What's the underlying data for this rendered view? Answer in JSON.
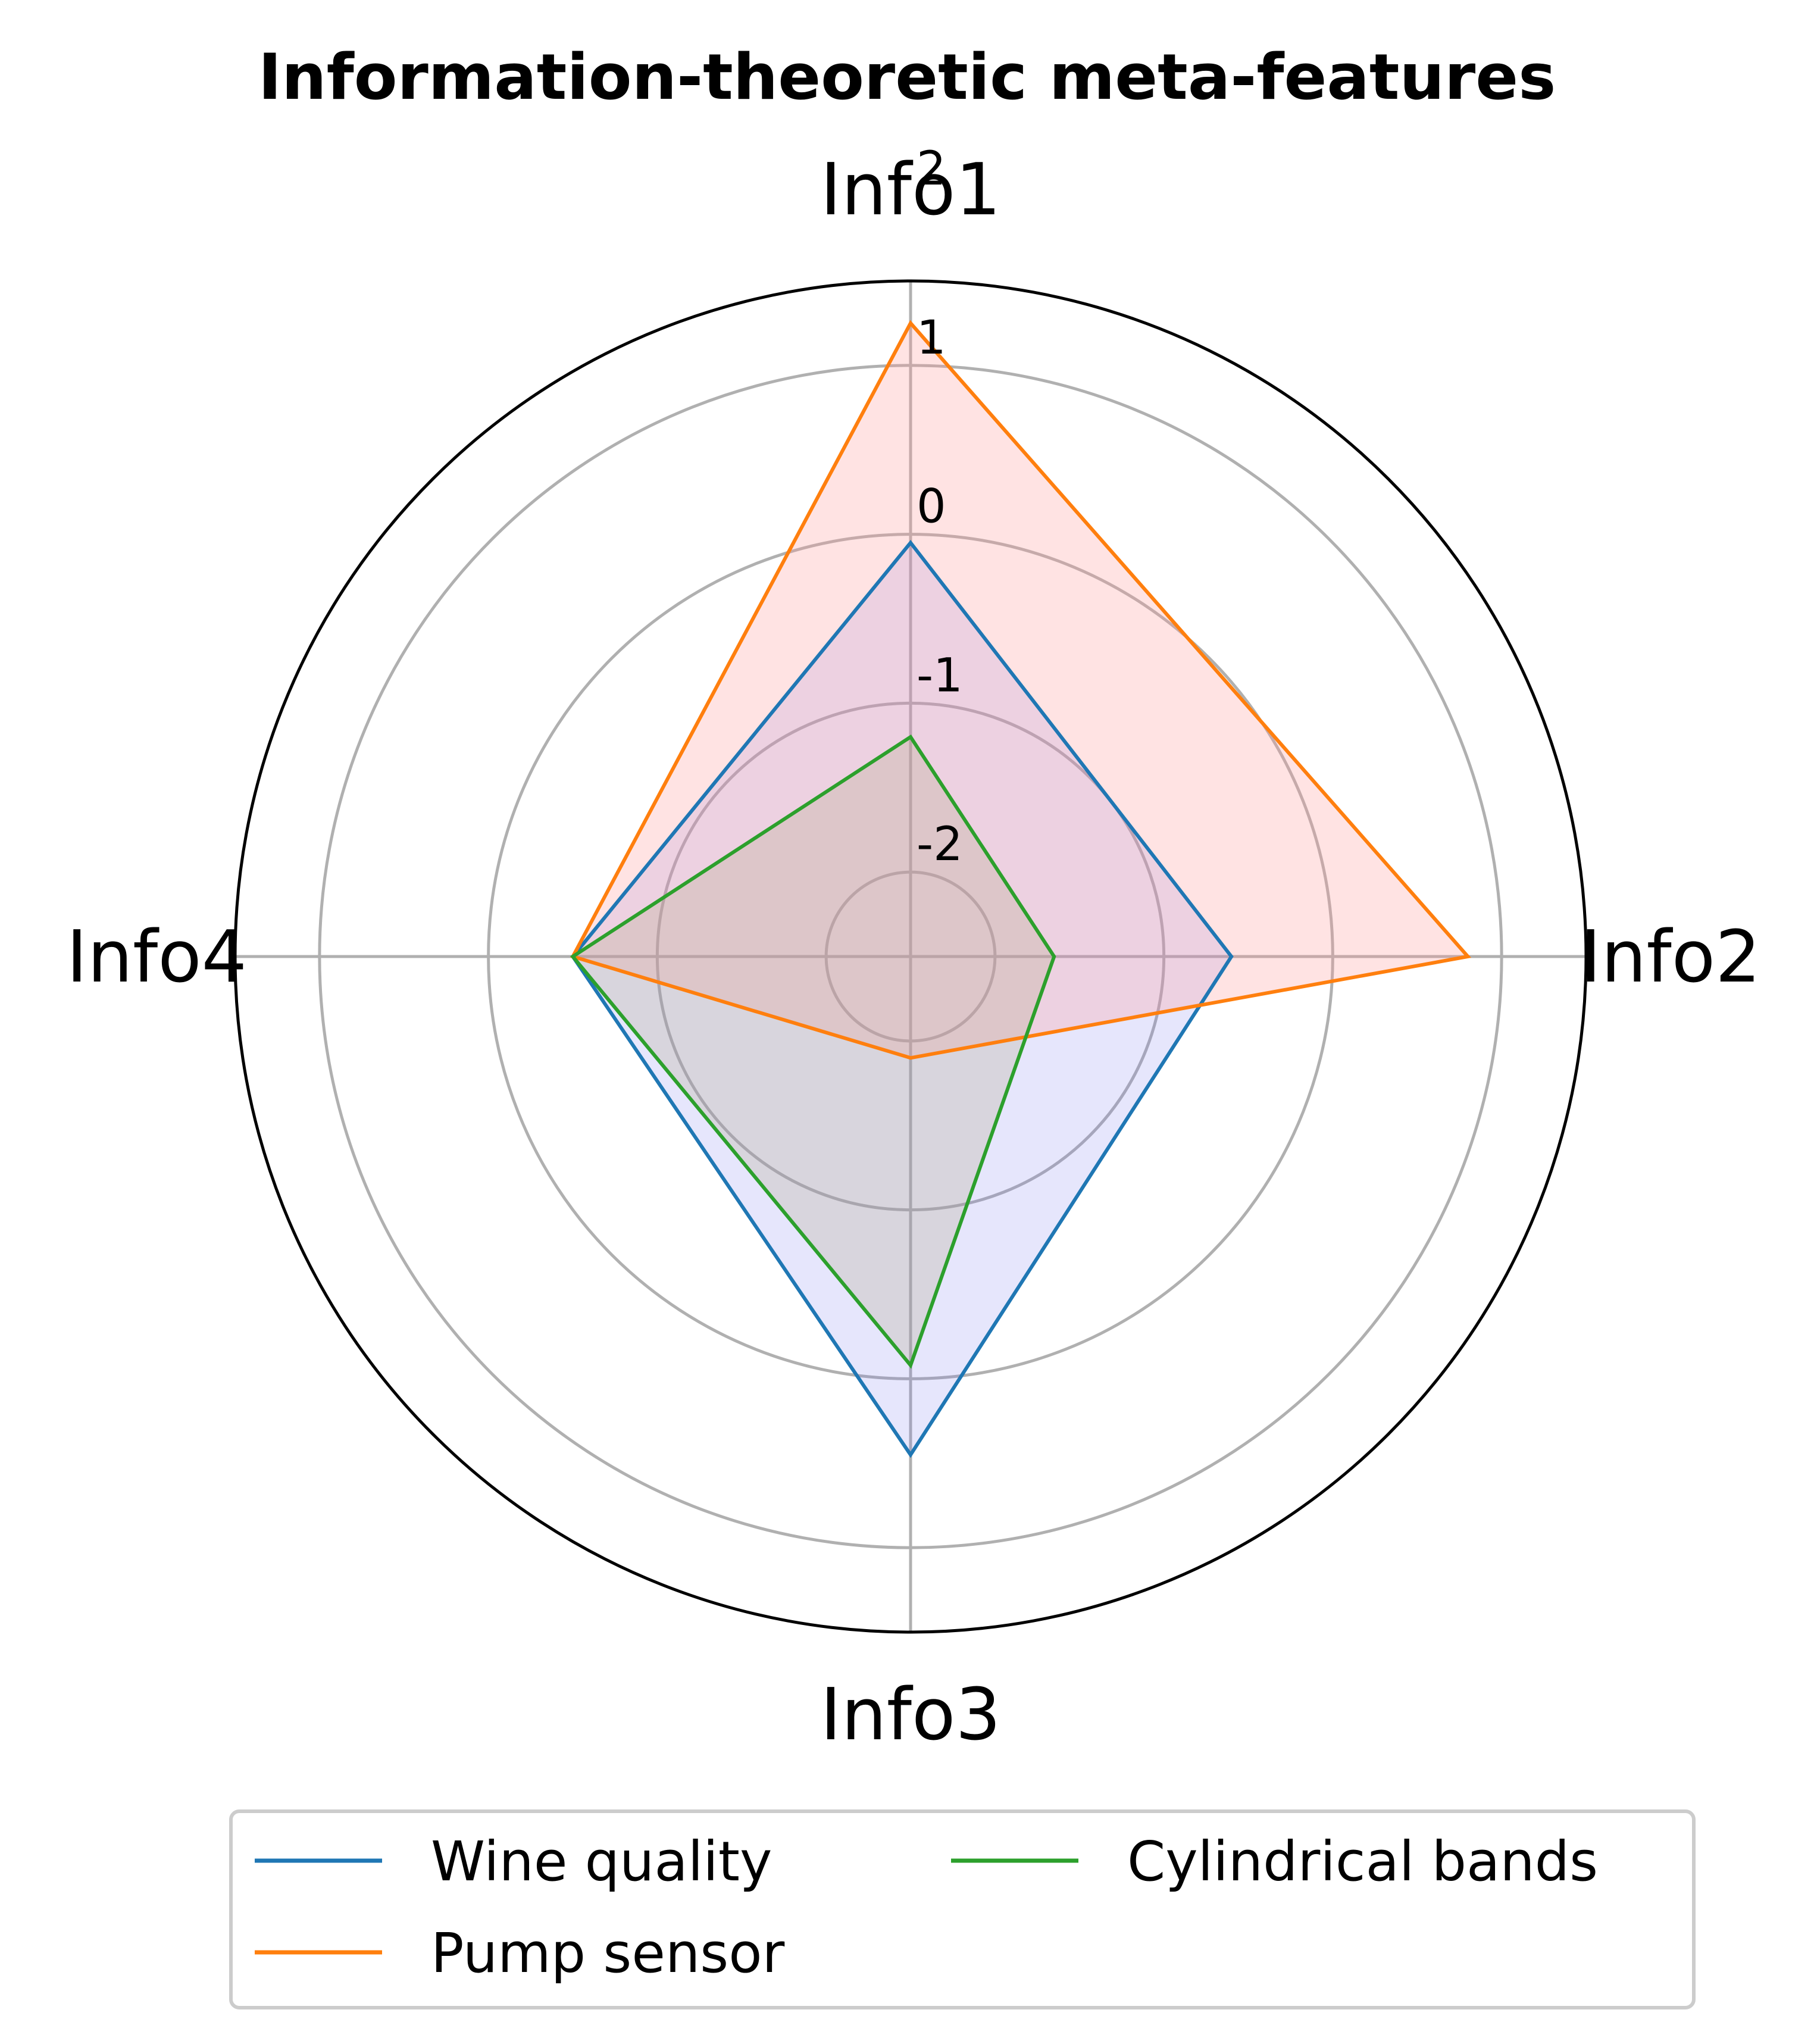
{
  "chart_data": {
    "type": "radar",
    "title": "Information-theoretic meta-features",
    "axes": [
      "Info1",
      "Info2",
      "Info3",
      "Info4"
    ],
    "rlim": [
      -2.5,
      1.5
    ],
    "rticks": [
      -2,
      -1,
      0,
      1,
      2
    ],
    "rtick_labels": [
      "-2",
      "-1",
      "0",
      "1",
      "2"
    ],
    "grid": true,
    "legend_position": "bottom",
    "series": [
      {
        "name": "Wine quality",
        "values": [
          -0.05,
          -0.6,
          0.45,
          -0.5
        ],
        "line_color": "#1f77b4",
        "fill_color": "#8080ee",
        "fill_opacity": 0.2
      },
      {
        "name": "Pump sensor",
        "values": [
          1.25,
          0.8,
          -1.9,
          -0.5
        ],
        "line_color": "#ff7f0e",
        "fill_color": "#ff9999",
        "fill_opacity": 0.28
      },
      {
        "name": "Cylindrical bands",
        "values": [
          -1.2,
          -1.65,
          -0.08,
          -0.5
        ],
        "line_color": "#2ca02c",
        "fill_color": "#b3a88c",
        "fill_opacity": 0.28
      }
    ]
  }
}
